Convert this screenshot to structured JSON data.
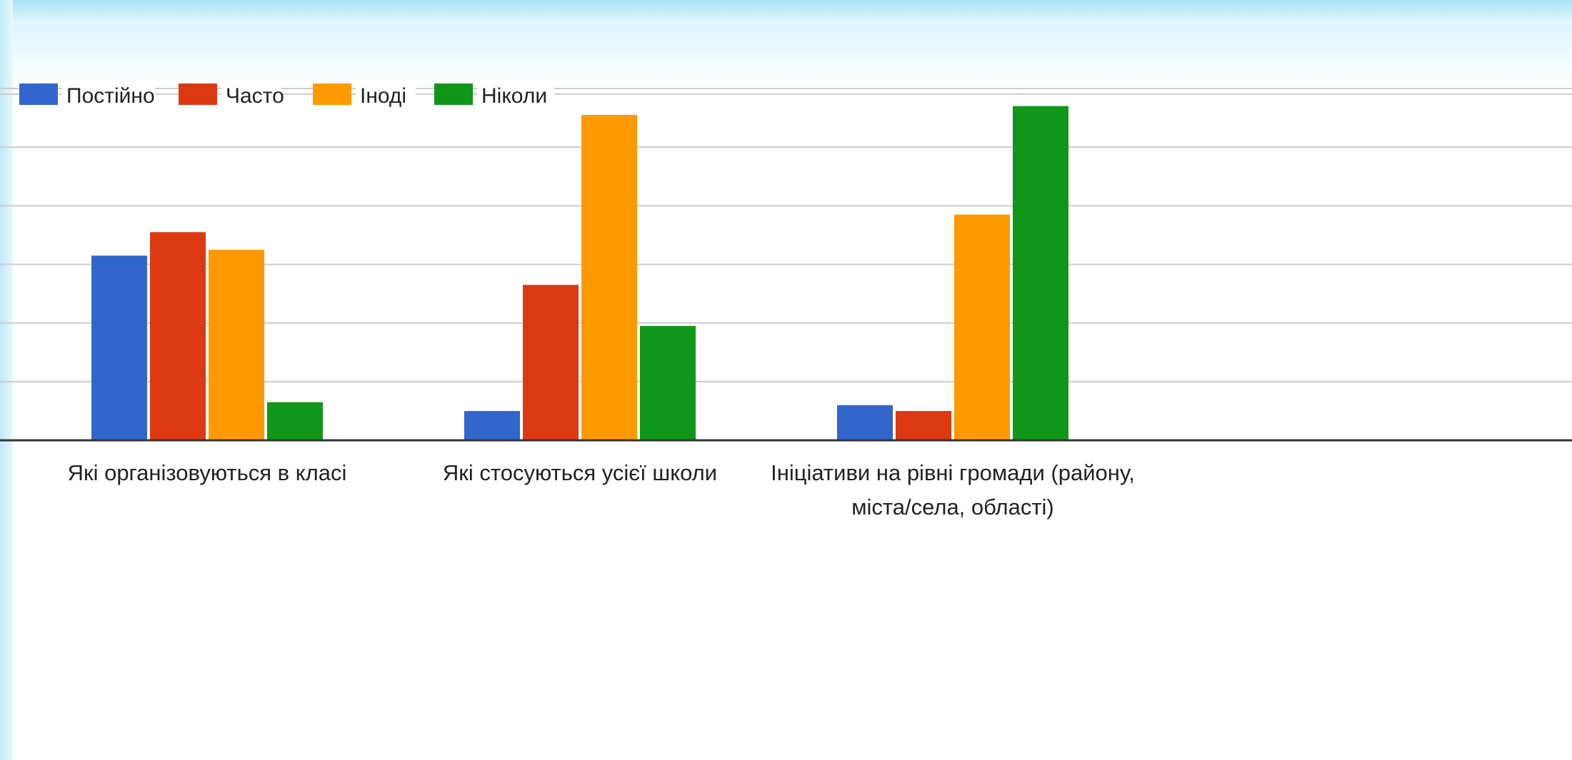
{
  "chart_data": {
    "type": "bar",
    "categories": [
      [
        "Які організовуються в класі"
      ],
      [
        "Які стосуються усієї школи"
      ],
      [
        "Ініціативи на рівні громади (району,",
        "міста/села, області)"
      ]
    ],
    "series": [
      {
        "name": "Постійно",
        "color": "#3366cc",
        "values": [
          31.5,
          5,
          6
        ]
      },
      {
        "name": "Часто",
        "color": "#dc3912",
        "values": [
          35.5,
          26.5,
          5
        ]
      },
      {
        "name": "Іноді",
        "color": "#ff9900",
        "values": [
          32.5,
          55.5,
          38.5
        ]
      },
      {
        "name": "Ніколи",
        "color": "#109618",
        "values": [
          6.5,
          19.5,
          57
        ]
      }
    ],
    "ylim": [
      0,
      60
    ],
    "grid": true,
    "legend": "top-left"
  }
}
